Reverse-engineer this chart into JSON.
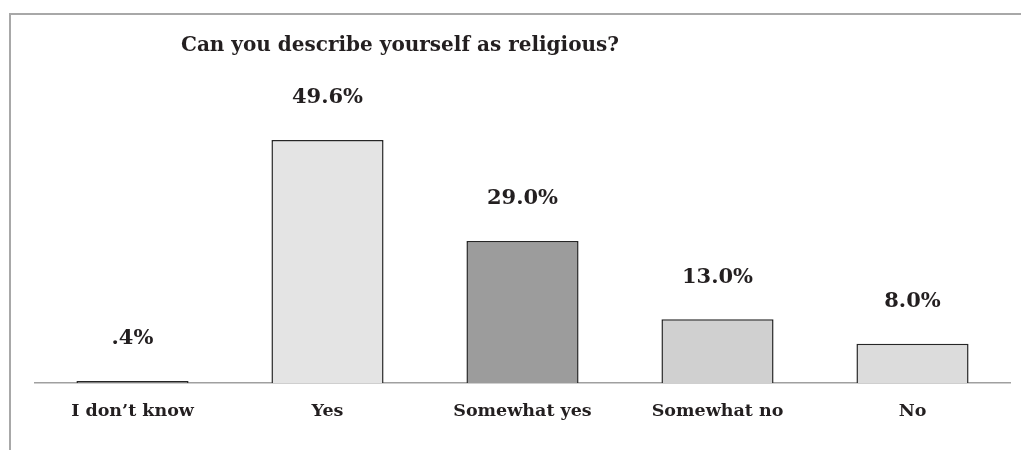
{
  "chart_data": {
    "type": "bar",
    "title": "Can you describe yourself as religious?",
    "categories": [
      "I don’t know",
      "Yes",
      "Somewhat yes",
      "Somewhat no",
      "No"
    ],
    "values": [
      0.4,
      49.6,
      29.0,
      13.0,
      8.0
    ],
    "value_labels": [
      ".4%",
      "49.6%",
      "29.0%",
      "13.0%",
      "8.0%"
    ],
    "colors": [
      "#808080",
      "#e4e4e4",
      "#9c9c9c",
      "#d0d0d0",
      "#dcdcdc"
    ]
  }
}
